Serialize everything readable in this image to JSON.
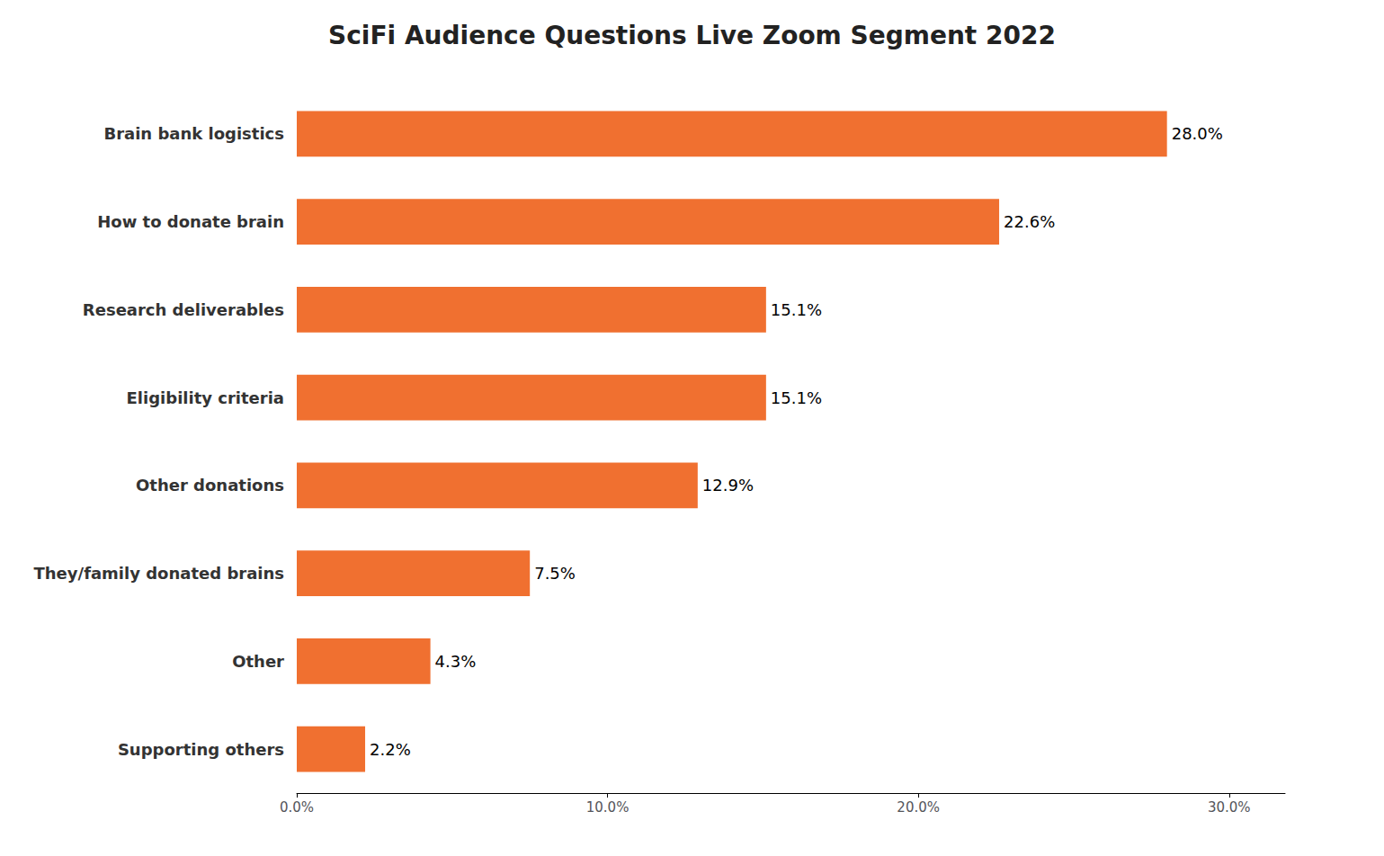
{
  "chart_data": {
    "type": "bar",
    "orientation": "horizontal",
    "title": "SciFi Audience Questions Live Zoom Segment 2022",
    "categories": [
      "Brain bank logistics",
      "How to donate brain",
      "Research deliverables",
      "Eligibility criteria",
      "Other donations",
      "They/family donated brains",
      "Other",
      "Supporting others"
    ],
    "values": [
      28.0,
      22.6,
      15.1,
      15.1,
      12.9,
      7.5,
      4.3,
      2.2
    ],
    "value_labels": [
      "28.0%",
      "22.6%",
      "15.1%",
      "15.1%",
      "12.9%",
      "7.5%",
      "4.3%",
      "2.2%"
    ],
    "color": "#F07030",
    "xlim": [
      0,
      31.8
    ],
    "xticks": [
      {
        "value": 0,
        "label": "0.0%"
      },
      {
        "value": 10,
        "label": "10.0%"
      },
      {
        "value": 20,
        "label": "20.0%"
      },
      {
        "value": 30,
        "label": "30.0%"
      }
    ],
    "grid": false,
    "data_labels": true
  }
}
